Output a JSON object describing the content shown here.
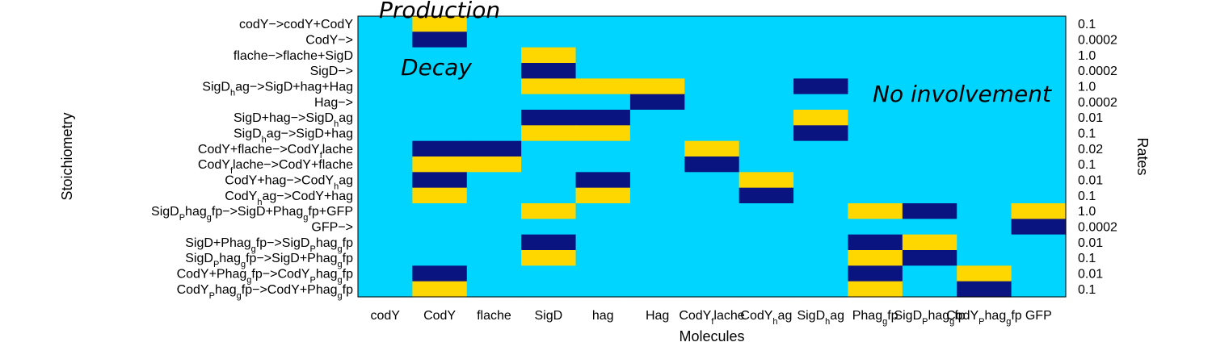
{
  "colors": {
    "none": "#00D5FF",
    "positive": "#FFD700",
    "negative": "#0A1480"
  },
  "chart_data": {
    "type": "heatmap",
    "xlabel": "Molecules",
    "ylabel": "Stoichiometry",
    "right_label": "Rates",
    "columns": [
      "codY",
      "CodY",
      "flache",
      "SigD",
      "hag",
      "Hag",
      "CodY_flache",
      "CodY_hag",
      "SigD_hag",
      "Phag_gfp",
      "SigD_Phag_gfp",
      "CodY_Phag_gfp",
      "GFP"
    ],
    "column_labels": [
      {
        "base": "codY"
      },
      {
        "base": "CodY"
      },
      {
        "base": "flache"
      },
      {
        "base": "SigD"
      },
      {
        "base": "hag"
      },
      {
        "base": "Hag"
      },
      {
        "base": "CodY",
        "sub": "f",
        "rest": "lache"
      },
      {
        "base": "CodY",
        "sub": "h",
        "rest": "ag"
      },
      {
        "base": "SigD",
        "sub": "h",
        "rest": "ag"
      },
      {
        "base": "Phag",
        "sub": "g",
        "rest": "fp"
      },
      {
        "base": "SigD",
        "sub": "P",
        "rest": "hag",
        "sub2": "g",
        "rest2": "fp"
      },
      {
        "base": "CodY",
        "sub": "P",
        "rest": "hag",
        "sub2": "g",
        "rest2": "fp"
      },
      {
        "base": "GFP"
      }
    ],
    "row_labels": [
      [
        "codY−>codY+CodY"
      ],
      [
        "CodY−>"
      ],
      [
        "flache−>flache+SigD"
      ],
      [
        "SigD−>"
      ],
      [
        "SigD",
        "_h",
        "ag−>SigD+hag+Hag"
      ],
      [
        "Hag−>"
      ],
      [
        "SigD+hag−>SigD",
        "_h",
        "ag"
      ],
      [
        "SigD",
        "_h",
        "ag−>SigD+hag"
      ],
      [
        "CodY+flache−>CodY",
        "_f",
        "lache"
      ],
      [
        "CodY",
        "_f",
        "lache−>CodY+flache"
      ],
      [
        "CodY+hag−>CodY",
        "_h",
        "ag"
      ],
      [
        "CodY",
        "_h",
        "ag−>CodY+hag"
      ],
      [
        "SigD",
        "_P",
        "hag",
        "_g",
        "fp−>SigD+Phag",
        "_g",
        "fp+GFP"
      ],
      [
        "GFP−>"
      ],
      [
        "SigD+Phag",
        "_g",
        "fp−>SigD",
        "_P",
        "hag",
        "_g",
        "fp"
      ],
      [
        "SigD",
        "_P",
        "hag",
        "_g",
        "fp−>SigD+Phag",
        "_g",
        "fp"
      ],
      [
        "CodY+Phag",
        "_g",
        "fp−>CodY",
        "_P",
        "hag",
        "_g",
        "fp"
      ],
      [
        "CodY",
        "_P",
        "hag",
        "_g",
        "fp−>CodY+Phag",
        "_g",
        "fp"
      ]
    ],
    "rates": [
      "0.1",
      "0.0002",
      "1.0",
      "0.0002",
      "1.0",
      "0.0002",
      "0.01",
      "0.1",
      "0.02",
      "0.1",
      "0.01",
      "0.1",
      "1.0",
      "0.0002",
      "0.01",
      "0.1",
      "0.01",
      "0.1"
    ],
    "matrix": [
      [
        0,
        1,
        0,
        0,
        0,
        0,
        0,
        0,
        0,
        0,
        0,
        0,
        0
      ],
      [
        0,
        -1,
        0,
        0,
        0,
        0,
        0,
        0,
        0,
        0,
        0,
        0,
        0
      ],
      [
        0,
        0,
        0,
        1,
        0,
        0,
        0,
        0,
        0,
        0,
        0,
        0,
        0
      ],
      [
        0,
        0,
        0,
        -1,
        0,
        0,
        0,
        0,
        0,
        0,
        0,
        0,
        0
      ],
      [
        0,
        0,
        0,
        1,
        1,
        1,
        0,
        0,
        -1,
        0,
        0,
        0,
        0
      ],
      [
        0,
        0,
        0,
        0,
        0,
        -1,
        0,
        0,
        0,
        0,
        0,
        0,
        0
      ],
      [
        0,
        0,
        0,
        -1,
        -1,
        0,
        0,
        0,
        1,
        0,
        0,
        0,
        0
      ],
      [
        0,
        0,
        0,
        1,
        1,
        0,
        0,
        0,
        -1,
        0,
        0,
        0,
        0
      ],
      [
        0,
        -1,
        -1,
        0,
        0,
        0,
        1,
        0,
        0,
        0,
        0,
        0,
        0
      ],
      [
        0,
        1,
        1,
        0,
        0,
        0,
        -1,
        0,
        0,
        0,
        0,
        0,
        0
      ],
      [
        0,
        -1,
        0,
        0,
        -1,
        0,
        0,
        1,
        0,
        0,
        0,
        0,
        0
      ],
      [
        0,
        1,
        0,
        0,
        1,
        0,
        0,
        -1,
        0,
        0,
        0,
        0,
        0
      ],
      [
        0,
        0,
        0,
        1,
        0,
        0,
        0,
        0,
        0,
        1,
        -1,
        0,
        1
      ],
      [
        0,
        0,
        0,
        0,
        0,
        0,
        0,
        0,
        0,
        0,
        0,
        0,
        -1
      ],
      [
        0,
        0,
        0,
        -1,
        0,
        0,
        0,
        0,
        0,
        -1,
        1,
        0,
        0
      ],
      [
        0,
        0,
        0,
        1,
        0,
        0,
        0,
        0,
        0,
        1,
        -1,
        0,
        0
      ],
      [
        0,
        -1,
        0,
        0,
        0,
        0,
        0,
        0,
        0,
        -1,
        0,
        1,
        0
      ],
      [
        0,
        1,
        0,
        0,
        0,
        0,
        0,
        0,
        0,
        1,
        0,
        -1,
        0
      ]
    ],
    "annotations": {
      "production": "Production",
      "decay": "Decay",
      "no_involvement": "No involvement"
    }
  }
}
